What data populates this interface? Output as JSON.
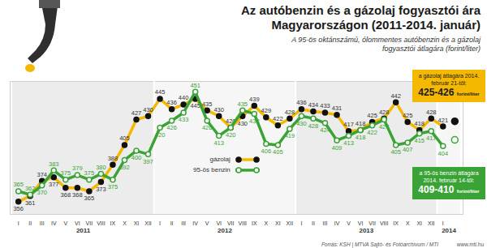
{
  "chart_data": {
    "type": "line",
    "title": "Az autóbenzin és a gázolaj fogyasztói ára Magyarországon (2011-2014. január)",
    "subtitle": "A 95-ös oktánszámú, ólommentes autóbenzin és a gázolaj fogyasztói átlagára (forint/liter)",
    "categories": [
      "I",
      "II",
      "III",
      "IV",
      "V",
      "VI",
      "VII",
      "VIII",
      "IX",
      "X",
      "XI",
      "XII",
      "I",
      "II",
      "III",
      "IV",
      "V",
      "VI",
      "VII",
      "VIII",
      "IX",
      "X",
      "XI",
      "XII",
      "I",
      "II",
      "III",
      "IV",
      "V",
      "VI",
      "VII",
      "VIII",
      "IX",
      "X",
      "XI",
      "XII",
      "I",
      null
    ],
    "year_groups": [
      {
        "label": "2011",
        "months": 12
      },
      {
        "label": "2012",
        "months": 12
      },
      {
        "label": "2013",
        "months": 12
      },
      {
        "label": "2014",
        "months": 2
      }
    ],
    "series": [
      {
        "name": "gázolaj",
        "color": "#f5b800",
        "marker": "filled",
        "values": [
          356,
          361,
          374,
          377,
          368,
          368,
          365,
          373,
          388,
          405,
          427,
          430,
          445,
          436,
          440,
          445,
          435,
          430,
          420,
          430,
          439,
          429,
          422,
          428,
          436,
          434,
          433,
          431,
          417,
          418,
          425,
          428,
          442,
          425,
          418,
          428,
          421,
          null
        ]
      },
      {
        "name": "95-ös benzin",
        "color": "#3aa335",
        "marker": "hollow",
        "values": [
          365,
          362,
          370,
          383,
          375,
          379,
          375,
          380,
          375,
          392,
          400,
          397,
          420,
          426,
          433,
          451,
          426,
          413,
          420,
          435,
          432,
          406,
          405,
          419,
          430,
          428,
          424,
          409,
          413,
          418,
          422,
          427,
          405,
          407,
          415,
          417,
          404,
          null
        ]
      }
    ],
    "annotations": [
      {
        "series": "gázolaj",
        "text": "a gázolaj átlagára 2014. február 21-től:",
        "value": 425.5,
        "value_label": "425-426",
        "unit": "forint/liter",
        "color": "#f5b800"
      },
      {
        "series": "95-ös benzin",
        "text": "a 95-ös benzin átlagára 2014. február 14-től:",
        "value": 409.5,
        "value_label": "409-410",
        "unit": "forint/liter",
        "color": "#3aa335"
      }
    ],
    "ylim": [
      345,
      460
    ],
    "yticks": [],
    "tick_labels": "x",
    "data_labels": true,
    "legend": "center",
    "source": "Forrás: KSH | MTVA Sajtó- és Fotóarchívum / MTI",
    "website": "www.mti.hu"
  }
}
